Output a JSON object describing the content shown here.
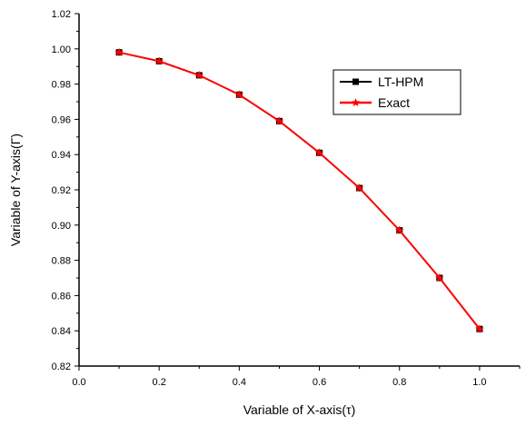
{
  "chart_data": {
    "type": "line",
    "xlabel": "Variable of X-axis(τ)",
    "ylabel": "Variable of Y-axis(Γ)",
    "xlim": [
      0.0,
      1.1
    ],
    "ylim": [
      0.82,
      1.02
    ],
    "x_ticks": [
      "0.0",
      "0.2",
      "0.4",
      "0.6",
      "0.8",
      "1.0"
    ],
    "y_ticks": [
      "0.82",
      "0.84",
      "0.86",
      "0.88",
      "0.90",
      "0.92",
      "0.94",
      "0.96",
      "0.98",
      "1.00",
      "1.02"
    ],
    "grid": false,
    "legend_position": "top-right",
    "x": [
      0.1,
      0.2,
      0.3,
      0.4,
      0.5,
      0.6,
      0.7,
      0.8,
      0.9,
      1.0
    ],
    "series": [
      {
        "name": "LT-HPM",
        "color": "#000000",
        "marker": "square",
        "values": [
          0.998,
          0.993,
          0.985,
          0.974,
          0.959,
          0.941,
          0.921,
          0.897,
          0.87,
          0.841
        ]
      },
      {
        "name": "Exact",
        "color": "#ff0000",
        "marker": "star",
        "values": [
          0.998,
          0.993,
          0.985,
          0.974,
          0.959,
          0.941,
          0.921,
          0.897,
          0.87,
          0.841
        ]
      }
    ]
  }
}
